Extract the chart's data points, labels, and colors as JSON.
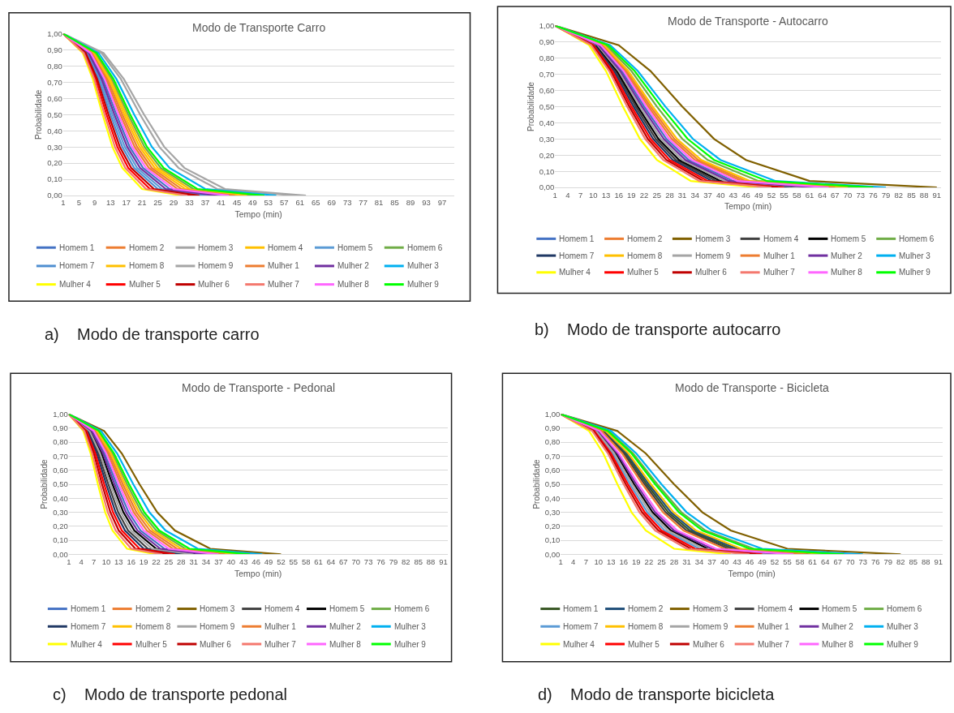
{
  "chart_data": [
    {
      "type": "line",
      "title": "Modo de Transporte Carro",
      "xlabel": "Tempo (min)",
      "ylabel": "Probabilidade",
      "annotations": [
        "a)    Modo de transporte carro"
      ],
      "xlim": [
        1,
        100
      ],
      "xticks": [
        1,
        5,
        9,
        13,
        17,
        21,
        25,
        29,
        33,
        37,
        41,
        45,
        49,
        53,
        57,
        61,
        65,
        69,
        73,
        77,
        81,
        85,
        89,
        93,
        97
      ],
      "ylim": [
        0,
        1
      ],
      "yticks": [
        {
          "value": 0,
          "label": "0,00"
        },
        {
          "value": 0.1,
          "label": "0,10"
        },
        {
          "value": 0.2,
          "label": "0,20"
        },
        {
          "value": 0.3,
          "label": "0,30"
        },
        {
          "value": 0.4,
          "label": "0,40"
        },
        {
          "value": 0.5,
          "label": "0,50"
        },
        {
          "value": 0.6,
          "label": "0,60"
        },
        {
          "value": 0.7,
          "label": "0,70"
        },
        {
          "value": 0.8,
          "label": "0,80"
        },
        {
          "value": 0.9,
          "label": "0,90"
        },
        {
          "value": 1,
          "label": "1,00"
        }
      ],
      "grid": "y",
      "legend": "bottom",
      "series": [
        {
          "name": "Homem 1",
          "color": "#4472c4",
          "x": [
            1,
            7.75,
            11.125,
            14.5,
            17.875,
            21.25,
            28,
            41.5
          ],
          "values": [
            1,
            0.88,
            0.72,
            0.5,
            0.3,
            0.17,
            0.04,
            0
          ]
        },
        {
          "name": "Homem 2",
          "color": "#ed7d31",
          "x": [
            1,
            8.5,
            12.25,
            16,
            19.75,
            23.5,
            31,
            46
          ],
          "values": [
            1,
            0.88,
            0.72,
            0.5,
            0.3,
            0.17,
            0.04,
            0
          ]
        },
        {
          "name": "Homem 3",
          "color": "#a5a5a5",
          "x": [
            1,
            11.25,
            16.375,
            21.5,
            26.625,
            31.75,
            42,
            62.5
          ],
          "values": [
            1,
            0.88,
            0.72,
            0.5,
            0.3,
            0.17,
            0.04,
            0
          ]
        },
        {
          "name": "Homem 4",
          "color": "#ffc000",
          "x": [
            1,
            9,
            13,
            17,
            21,
            25,
            33,
            49
          ],
          "values": [
            1,
            0.88,
            0.72,
            0.5,
            0.3,
            0.17,
            0.04,
            0
          ]
        },
        {
          "name": "Homem 5",
          "color": "#5b9bd5",
          "x": [
            1,
            7.25,
            10.375,
            13.5,
            16.625,
            19.75,
            26,
            38.5
          ],
          "values": [
            1,
            0.88,
            0.72,
            0.5,
            0.3,
            0.17,
            0.04,
            0
          ]
        },
        {
          "name": "Homem 6",
          "color": "#70ad47",
          "x": [
            1,
            9.25,
            13.375,
            17.5,
            21.625,
            25.75,
            34,
            50.5
          ],
          "values": [
            1,
            0.88,
            0.72,
            0.5,
            0.3,
            0.17,
            0.04,
            0
          ]
        },
        {
          "name": "Homem 7",
          "color": "#4f8fd0",
          "x": [
            1,
            7,
            10,
            13,
            16,
            19,
            25,
            37
          ],
          "values": [
            1,
            0.88,
            0.72,
            0.5,
            0.3,
            0.17,
            0.04,
            0
          ]
        },
        {
          "name": "Homem 8",
          "color": "#ffc000",
          "x": [
            1,
            8.75,
            12.625,
            16.5,
            20.375,
            24.25,
            32,
            47.5
          ],
          "values": [
            1,
            0.88,
            0.72,
            0.5,
            0.3,
            0.17,
            0.04,
            0
          ]
        },
        {
          "name": "Homem 9",
          "color": "#a5a5a5",
          "x": [
            1,
            10.75,
            15.625,
            20.5,
            25.375,
            30.25,
            40,
            59.5
          ],
          "values": [
            1,
            0.88,
            0.72,
            0.5,
            0.3,
            0.17,
            0.04,
            0
          ]
        },
        {
          "name": "Mulher 1",
          "color": "#ed7d31",
          "x": [
            1,
            8.25,
            11.875,
            15.5,
            19.125,
            22.75,
            30,
            44.5
          ],
          "values": [
            1,
            0.88,
            0.72,
            0.5,
            0.3,
            0.17,
            0.04,
            0
          ]
        },
        {
          "name": "Mulher 2",
          "color": "#7030a0",
          "x": [
            1,
            7.5,
            10.75,
            14,
            17.25,
            20.5,
            27,
            40
          ],
          "values": [
            1,
            0.88,
            0.72,
            0.5,
            0.3,
            0.17,
            0.04,
            0
          ]
        },
        {
          "name": "Mulher 3",
          "color": "#00b0f0",
          "x": [
            1,
            10,
            14.5,
            19,
            23.5,
            28,
            37,
            55
          ],
          "values": [
            1,
            0.88,
            0.72,
            0.5,
            0.3,
            0.17,
            0.04,
            0
          ]
        },
        {
          "name": "Mulher 4",
          "color": "#ffff00",
          "x": [
            1,
            6,
            8.5,
            11,
            13.5,
            16,
            21,
            31
          ],
          "values": [
            1,
            0.88,
            0.72,
            0.5,
            0.3,
            0.17,
            0.04,
            0
          ]
        },
        {
          "name": "Mulher 5",
          "color": "#ff0000",
          "x": [
            1,
            6.5,
            9.25,
            12,
            14.75,
            17.5,
            23,
            34
          ],
          "values": [
            1,
            0.88,
            0.72,
            0.5,
            0.3,
            0.17,
            0.04,
            0
          ]
        },
        {
          "name": "Mulher 6",
          "color": "#c00000",
          "x": [
            1,
            6.75,
            9.625,
            12.5,
            15.375,
            18.25,
            24,
            35.5
          ],
          "values": [
            1,
            0.88,
            0.72,
            0.5,
            0.3,
            0.17,
            0.04,
            0
          ]
        },
        {
          "name": "Mulher 7",
          "color": "#f4786e",
          "x": [
            1,
            6.25,
            8.875,
            11.5,
            14.125,
            16.75,
            22,
            32.5
          ],
          "values": [
            1,
            0.88,
            0.72,
            0.5,
            0.3,
            0.17,
            0.04,
            0
          ]
        },
        {
          "name": "Mulher 8",
          "color": "#ff66ff",
          "x": [
            1,
            8,
            11.5,
            15,
            18.5,
            22,
            29,
            43
          ],
          "values": [
            1,
            0.88,
            0.72,
            0.5,
            0.3,
            0.17,
            0.04,
            0
          ]
        },
        {
          "name": "Mulher 9",
          "color": "#00ff00",
          "x": [
            1,
            9.5,
            13.75,
            18,
            22.25,
            26.5,
            35,
            52
          ],
          "values": [
            1,
            0.88,
            0.72,
            0.5,
            0.3,
            0.17,
            0.04,
            0
          ]
        }
      ]
    },
    {
      "type": "line",
      "title": "Modo de Transporte - Autocarro",
      "xlabel": "Tempo (min)",
      "ylabel": "Probabilidade",
      "annotations": [
        "b)    Modo de transporte autocarro"
      ],
      "xlim": [
        1,
        92
      ],
      "xticks": [
        1,
        4,
        7,
        10,
        13,
        16,
        19,
        22,
        25,
        28,
        31,
        34,
        37,
        40,
        43,
        46,
        49,
        52,
        55,
        58,
        61,
        64,
        67,
        70,
        73,
        76,
        79,
        82,
        85,
        88,
        91
      ],
      "ylim": [
        0,
        1
      ],
      "yticks": [
        {
          "value": 0,
          "label": "0,00"
        },
        {
          "value": 0.1,
          "label": "0,10"
        },
        {
          "value": 0.2,
          "label": "0,20"
        },
        {
          "value": 0.3,
          "label": "0,30"
        },
        {
          "value": 0.4,
          "label": "0,40"
        },
        {
          "value": 0.5,
          "label": "0,50"
        },
        {
          "value": 0.6,
          "label": "0,60"
        },
        {
          "value": 0.7,
          "label": "0,70"
        },
        {
          "value": 0.8,
          "label": "0,80"
        },
        {
          "value": 0.9,
          "label": "0,90"
        },
        {
          "value": 1,
          "label": "1,00"
        }
      ],
      "grid": "y",
      "legend": "bottom",
      "series": [
        {
          "name": "Homem 1",
          "color": "#4472c4",
          "x": [
            1,
            11.5,
            16.75,
            22,
            27.25,
            32.5,
            43,
            64
          ],
          "values": [
            1,
            0.88,
            0.72,
            0.5,
            0.3,
            0.17,
            0.04,
            0
          ]
        },
        {
          "name": "Homem 2",
          "color": "#ed7d31",
          "x": [
            1,
            12.25,
            17.875,
            23.5,
            29.125,
            34.75,
            46,
            68.5
          ],
          "values": [
            1,
            0.88,
            0.72,
            0.5,
            0.3,
            0.17,
            0.04,
            0
          ]
        },
        {
          "name": "Homem 3",
          "color": "#806000",
          "x": [
            1,
            16,
            23.5,
            31,
            38.5,
            46,
            61,
            91
          ],
          "values": [
            1,
            0.88,
            0.72,
            0.5,
            0.3,
            0.17,
            0.04,
            0
          ]
        },
        {
          "name": "Homem 4",
          "color": "#404040",
          "x": [
            1,
            10.5,
            15.25,
            20,
            24.75,
            29.5,
            39,
            58
          ],
          "values": [
            1,
            0.88,
            0.72,
            0.5,
            0.3,
            0.17,
            0.04,
            0
          ]
        },
        {
          "name": "Homem 5",
          "color": "#000000",
          "x": [
            1,
            10.75,
            15.625,
            20.5,
            25.375,
            30.25,
            40,
            59.5
          ],
          "values": [
            1,
            0.88,
            0.72,
            0.5,
            0.3,
            0.17,
            0.04,
            0
          ]
        },
        {
          "name": "Homem 6",
          "color": "#70ad47",
          "x": [
            1,
            13,
            19,
            25,
            31,
            37,
            49,
            73
          ],
          "values": [
            1,
            0.88,
            0.72,
            0.5,
            0.3,
            0.17,
            0.04,
            0
          ]
        },
        {
          "name": "Homem 7",
          "color": "#203864",
          "x": [
            1,
            10.25,
            14.875,
            19.5,
            24.125,
            28.75,
            38,
            56.5
          ],
          "values": [
            1,
            0.88,
            0.72,
            0.5,
            0.3,
            0.17,
            0.04,
            0
          ]
        },
        {
          "name": "Homem 8",
          "color": "#ffc000",
          "x": [
            1,
            12.5,
            18.25,
            24,
            29.75,
            35.5,
            47,
            70
          ],
          "values": [
            1,
            0.88,
            0.72,
            0.5,
            0.3,
            0.17,
            0.04,
            0
          ]
        },
        {
          "name": "Homem 9",
          "color": "#a5a5a5",
          "x": [
            1,
            11,
            16,
            21,
            26,
            31,
            41,
            61
          ],
          "values": [
            1,
            0.88,
            0.72,
            0.5,
            0.3,
            0.17,
            0.04,
            0
          ]
        },
        {
          "name": "Mulher 1",
          "color": "#ed7d31",
          "x": [
            1,
            12,
            17.5,
            23,
            28.5,
            34,
            45,
            67
          ],
          "values": [
            1,
            0.88,
            0.72,
            0.5,
            0.3,
            0.17,
            0.04,
            0
          ]
        },
        {
          "name": "Mulher 2",
          "color": "#7030a0",
          "x": [
            1,
            11.25,
            16.375,
            21.5,
            26.625,
            31.75,
            42,
            62.5
          ],
          "values": [
            1,
            0.88,
            0.72,
            0.5,
            0.3,
            0.17,
            0.04,
            0
          ]
        },
        {
          "name": "Mulher 3",
          "color": "#00b0f0",
          "x": [
            1,
            14,
            20.5,
            27,
            33.5,
            40,
            53,
            79
          ],
          "values": [
            1,
            0.88,
            0.72,
            0.5,
            0.3,
            0.17,
            0.04,
            0
          ]
        },
        {
          "name": "Mulher 4",
          "color": "#ffff00",
          "x": [
            1,
            9,
            13,
            17,
            21,
            25,
            33,
            49
          ],
          "values": [
            1,
            0.88,
            0.72,
            0.5,
            0.3,
            0.17,
            0.04,
            0
          ]
        },
        {
          "name": "Mulher 5",
          "color": "#ff0000",
          "x": [
            1,
            10,
            14.5,
            19,
            23.5,
            28,
            37,
            55
          ],
          "values": [
            1,
            0.88,
            0.72,
            0.5,
            0.3,
            0.17,
            0.04,
            0
          ]
        },
        {
          "name": "Mulher 6",
          "color": "#c00000",
          "x": [
            1,
            9.75,
            14.125,
            18.5,
            22.875,
            27.25,
            36,
            53.5
          ],
          "values": [
            1,
            0.88,
            0.72,
            0.5,
            0.3,
            0.17,
            0.04,
            0
          ]
        },
        {
          "name": "Mulher 7",
          "color": "#f4786e",
          "x": [
            1,
            9.5,
            13.75,
            18,
            22.25,
            26.5,
            35,
            52
          ],
          "values": [
            1,
            0.88,
            0.72,
            0.5,
            0.3,
            0.17,
            0.04,
            0
          ]
        },
        {
          "name": "Mulher 8",
          "color": "#ff66ff",
          "x": [
            1,
            11.75,
            17.125,
            22.5,
            27.875,
            33.25,
            44,
            65.5
          ],
          "values": [
            1,
            0.88,
            0.72,
            0.5,
            0.3,
            0.17,
            0.04,
            0
          ]
        },
        {
          "name": "Mulher 9",
          "color": "#00ff00",
          "x": [
            1,
            13.5,
            19.75,
            26,
            32.25,
            38.5,
            51,
            76
          ],
          "values": [
            1,
            0.88,
            0.72,
            0.5,
            0.3,
            0.17,
            0.04,
            0
          ]
        }
      ]
    },
    {
      "type": "line",
      "title": "Modo de Transporte - Pedonal",
      "xlabel": "Tempo (min)",
      "ylabel": "Probabilidade",
      "annotations": [
        "c)    Modo de transporte pedonal"
      ],
      "xlim": [
        1,
        92
      ],
      "xticks": [
        1,
        4,
        7,
        10,
        13,
        16,
        19,
        22,
        25,
        28,
        31,
        34,
        37,
        40,
        43,
        46,
        49,
        52,
        55,
        58,
        61,
        64,
        67,
        70,
        73,
        76,
        79,
        82,
        85,
        88,
        91
      ],
      "ylim": [
        0,
        1
      ],
      "yticks": [
        {
          "value": 0,
          "label": "0,00"
        },
        {
          "value": 0.1,
          "label": "0,10"
        },
        {
          "value": 0.2,
          "label": "0,20"
        },
        {
          "value": 0.3,
          "label": "0,30"
        },
        {
          "value": 0.4,
          "label": "0,40"
        },
        {
          "value": 0.5,
          "label": "0,50"
        },
        {
          "value": 0.6,
          "label": "0,60"
        },
        {
          "value": 0.7,
          "label": "0,70"
        },
        {
          "value": 0.8,
          "label": "0,80"
        },
        {
          "value": 0.9,
          "label": "0,90"
        },
        {
          "value": 1,
          "label": "1,00"
        }
      ],
      "grid": "y",
      "legend": "bottom",
      "series": [
        {
          "name": "Homem 1",
          "color": "#4472c4",
          "x": [
            1,
            6.75,
            9.625,
            12.5,
            15.375,
            18.25,
            24,
            35.5
          ],
          "values": [
            1,
            0.88,
            0.72,
            0.5,
            0.3,
            0.17,
            0.04,
            0
          ]
        },
        {
          "name": "Homem 2",
          "color": "#ed7d31",
          "x": [
            1,
            7.5,
            10.75,
            14,
            17.25,
            20.5,
            27,
            40
          ],
          "values": [
            1,
            0.88,
            0.72,
            0.5,
            0.3,
            0.17,
            0.04,
            0
          ]
        },
        {
          "name": "Homem 3",
          "color": "#806000",
          "x": [
            1,
            9.5,
            13.75,
            18,
            22.25,
            26.5,
            35,
            52
          ],
          "values": [
            1,
            0.88,
            0.72,
            0.5,
            0.3,
            0.17,
            0.04,
            0
          ]
        },
        {
          "name": "Homem 4",
          "color": "#404040",
          "x": [
            1,
            5.75,
            8.125,
            10.5,
            12.875,
            15.25,
            20,
            29.5
          ],
          "values": [
            1,
            0.88,
            0.72,
            0.5,
            0.3,
            0.17,
            0.04,
            0
          ]
        },
        {
          "name": "Homem 5",
          "color": "#000000",
          "x": [
            1,
            6.25,
            8.875,
            11.5,
            14.125,
            16.75,
            22,
            32.5
          ],
          "values": [
            1,
            0.88,
            0.72,
            0.5,
            0.3,
            0.17,
            0.04,
            0
          ]
        },
        {
          "name": "Homem 6",
          "color": "#70ad47",
          "x": [
            1,
            8,
            11.5,
            15,
            18.5,
            22,
            29,
            43
          ],
          "values": [
            1,
            0.88,
            0.72,
            0.5,
            0.3,
            0.17,
            0.04,
            0
          ]
        },
        {
          "name": "Homem 7",
          "color": "#203864",
          "x": [
            1,
            5.5,
            7.75,
            10,
            12.25,
            14.5,
            19,
            28
          ],
          "values": [
            1,
            0.88,
            0.72,
            0.5,
            0.3,
            0.17,
            0.04,
            0
          ]
        },
        {
          "name": "Homem 8",
          "color": "#ffc000",
          "x": [
            1,
            7.75,
            11.125,
            14.5,
            17.875,
            21.25,
            28,
            41.5
          ],
          "values": [
            1,
            0.88,
            0.72,
            0.5,
            0.3,
            0.17,
            0.04,
            0
          ]
        },
        {
          "name": "Homem 9",
          "color": "#a5a5a5",
          "x": [
            1,
            6,
            8.5,
            11,
            13.5,
            16,
            21,
            31
          ],
          "values": [
            1,
            0.88,
            0.72,
            0.5,
            0.3,
            0.17,
            0.04,
            0
          ]
        },
        {
          "name": "Mulher 1",
          "color": "#ed7d31",
          "x": [
            1,
            7.25,
            10.375,
            13.5,
            16.625,
            19.75,
            26,
            38.5
          ],
          "values": [
            1,
            0.88,
            0.72,
            0.5,
            0.3,
            0.17,
            0.04,
            0
          ]
        },
        {
          "name": "Mulher 2",
          "color": "#7030a0",
          "x": [
            1,
            6.5,
            9.25,
            12,
            14.75,
            17.5,
            23,
            34
          ],
          "values": [
            1,
            0.88,
            0.72,
            0.5,
            0.3,
            0.17,
            0.04,
            0
          ]
        },
        {
          "name": "Mulher 3",
          "color": "#00b0f0",
          "x": [
            1,
            8.75,
            12.625,
            16.5,
            20.375,
            24.25,
            32,
            47.5
          ],
          "values": [
            1,
            0.88,
            0.72,
            0.5,
            0.3,
            0.17,
            0.04,
            0
          ]
        },
        {
          "name": "Mulher 4",
          "color": "#ffff00",
          "x": [
            1,
            4.5,
            6.25,
            8,
            9.75,
            11.5,
            15,
            22
          ],
          "values": [
            1,
            0.88,
            0.72,
            0.5,
            0.3,
            0.17,
            0.04,
            0
          ]
        },
        {
          "name": "Mulher 5",
          "color": "#ff0000",
          "x": [
            1,
            5.25,
            7.375,
            9.5,
            11.625,
            13.75,
            18,
            26.5
          ],
          "values": [
            1,
            0.88,
            0.72,
            0.5,
            0.3,
            0.17,
            0.04,
            0
          ]
        },
        {
          "name": "Mulher 6",
          "color": "#c00000",
          "x": [
            1,
            5,
            7,
            9,
            11,
            13,
            17,
            25
          ],
          "values": [
            1,
            0.88,
            0.72,
            0.5,
            0.3,
            0.17,
            0.04,
            0
          ]
        },
        {
          "name": "Mulher 7",
          "color": "#f4786e",
          "x": [
            1,
            4.75,
            6.625,
            8.5,
            10.375,
            12.25,
            16,
            23.5
          ],
          "values": [
            1,
            0.88,
            0.72,
            0.5,
            0.3,
            0.17,
            0.04,
            0
          ]
        },
        {
          "name": "Mulher 8",
          "color": "#ff66ff",
          "x": [
            1,
            7,
            10,
            13,
            16,
            19,
            25,
            37
          ],
          "values": [
            1,
            0.88,
            0.72,
            0.5,
            0.3,
            0.17,
            0.04,
            0
          ]
        },
        {
          "name": "Mulher 9",
          "color": "#00ff00",
          "x": [
            1,
            8.25,
            11.875,
            15.5,
            19.125,
            22.75,
            30,
            44.5
          ],
          "values": [
            1,
            0.88,
            0.72,
            0.5,
            0.3,
            0.17,
            0.04,
            0
          ]
        }
      ]
    },
    {
      "type": "line",
      "title": "Modo de Transporte - Bicicleta",
      "xlabel": "Tempo (min)",
      "ylabel": "Probabilidade",
      "annotations": [
        "d)    Modo de transporte bicicleta"
      ],
      "xlim": [
        1,
        92
      ],
      "xticks": [
        1,
        4,
        7,
        10,
        13,
        16,
        19,
        22,
        25,
        28,
        31,
        34,
        37,
        40,
        43,
        46,
        49,
        52,
        55,
        58,
        61,
        64,
        67,
        70,
        73,
        76,
        79,
        82,
        85,
        88,
        91
      ],
      "ylim": [
        0,
        1
      ],
      "yticks": [
        {
          "value": 0,
          "label": "0,00"
        },
        {
          "value": 0.1,
          "label": "0,10"
        },
        {
          "value": 0.2,
          "label": "0,20"
        },
        {
          "value": 0.3,
          "label": "0,30"
        },
        {
          "value": 0.4,
          "label": "0,40"
        },
        {
          "value": 0.5,
          "label": "0,50"
        },
        {
          "value": 0.6,
          "label": "0,60"
        },
        {
          "value": 0.7,
          "label": "0,70"
        },
        {
          "value": 0.8,
          "label": "0,80"
        },
        {
          "value": 0.9,
          "label": "0,90"
        },
        {
          "value": 1,
          "label": "1,00"
        }
      ],
      "grid": "y",
      "legend": "bottom",
      "series": [
        {
          "name": "Homem 1",
          "color": "#375623",
          "x": [
            1,
            11.25,
            16.375,
            21.5,
            26.625,
            31.75,
            42,
            62.5
          ],
          "values": [
            1,
            0.88,
            0.72,
            0.5,
            0.3,
            0.17,
            0.04,
            0
          ]
        },
        {
          "name": "Homem 2",
          "color": "#1f4e79",
          "x": [
            1,
            11.5,
            16.75,
            22,
            27.25,
            32.5,
            43,
            64
          ],
          "values": [
            1,
            0.88,
            0.72,
            0.5,
            0.3,
            0.17,
            0.04,
            0
          ]
        },
        {
          "name": "Homem 3",
          "color": "#806000",
          "x": [
            1,
            14.5,
            21.25,
            28,
            34.75,
            41.5,
            55,
            82
          ],
          "values": [
            1,
            0.88,
            0.72,
            0.5,
            0.3,
            0.17,
            0.04,
            0
          ]
        },
        {
          "name": "Homem 4",
          "color": "#404040",
          "x": [
            1,
            11,
            16,
            21,
            26,
            31,
            41,
            61
          ],
          "values": [
            1,
            0.88,
            0.72,
            0.5,
            0.3,
            0.17,
            0.04,
            0
          ]
        },
        {
          "name": "Homem 5",
          "color": "#000000",
          "x": [
            1,
            9.75,
            14.125,
            18.5,
            22.875,
            27.25,
            36,
            53.5
          ],
          "values": [
            1,
            0.88,
            0.72,
            0.5,
            0.3,
            0.17,
            0.04,
            0
          ]
        },
        {
          "name": "Homem 6",
          "color": "#70ad47",
          "x": [
            1,
            12.5,
            18.25,
            24,
            29.75,
            35.5,
            47,
            70
          ],
          "values": [
            1,
            0.88,
            0.72,
            0.5,
            0.3,
            0.17,
            0.04,
            0
          ]
        },
        {
          "name": "Homem 7",
          "color": "#5b9bd5",
          "x": [
            1,
            9.25,
            13.375,
            17.5,
            21.625,
            25.75,
            34,
            50.5
          ],
          "values": [
            1,
            0.88,
            0.72,
            0.5,
            0.3,
            0.17,
            0.04,
            0
          ]
        },
        {
          "name": "Homem 8",
          "color": "#ffc000",
          "x": [
            1,
            11.75,
            17.125,
            22.5,
            27.875,
            33.25,
            44,
            65.5
          ],
          "values": [
            1,
            0.88,
            0.72,
            0.5,
            0.3,
            0.17,
            0.04,
            0
          ]
        },
        {
          "name": "Homem 9",
          "color": "#a5a5a5",
          "x": [
            1,
            9.5,
            13.75,
            18,
            22.25,
            26.5,
            35,
            52
          ],
          "values": [
            1,
            0.88,
            0.72,
            0.5,
            0.3,
            0.17,
            0.04,
            0
          ]
        },
        {
          "name": "Mulher 1",
          "color": "#ed7d31",
          "x": [
            1,
            10.75,
            15.625,
            20.5,
            25.375,
            30.25,
            40,
            59.5
          ],
          "values": [
            1,
            0.88,
            0.72,
            0.5,
            0.3,
            0.17,
            0.04,
            0
          ]
        },
        {
          "name": "Mulher 2",
          "color": "#7030a0",
          "x": [
            1,
            10,
            14.5,
            19,
            23.5,
            28,
            37,
            55
          ],
          "values": [
            1,
            0.88,
            0.72,
            0.5,
            0.3,
            0.17,
            0.04,
            0
          ]
        },
        {
          "name": "Mulher 3",
          "color": "#00b0f0",
          "x": [
            1,
            13,
            19,
            25,
            31,
            37,
            49,
            73
          ],
          "values": [
            1,
            0.88,
            0.72,
            0.5,
            0.3,
            0.17,
            0.04,
            0
          ]
        },
        {
          "name": "Mulher 4",
          "color": "#ffff00",
          "x": [
            1,
            7.75,
            11.125,
            14.5,
            17.875,
            21.25,
            28,
            41.5
          ],
          "values": [
            1,
            0.88,
            0.72,
            0.5,
            0.3,
            0.17,
            0.04,
            0
          ]
        },
        {
          "name": "Mulher 5",
          "color": "#ff0000",
          "x": [
            1,
            9,
            13,
            17,
            21,
            25,
            33,
            49
          ],
          "values": [
            1,
            0.88,
            0.72,
            0.5,
            0.3,
            0.17,
            0.04,
            0
          ]
        },
        {
          "name": "Mulher 6",
          "color": "#c00000",
          "x": [
            1,
            8.75,
            12.625,
            16.5,
            20.375,
            24.25,
            32,
            47.5
          ],
          "values": [
            1,
            0.88,
            0.72,
            0.5,
            0.3,
            0.17,
            0.04,
            0
          ]
        },
        {
          "name": "Mulher 7",
          "color": "#f4786e",
          "x": [
            1,
            8.5,
            12.25,
            16,
            19.75,
            23.5,
            31,
            46
          ],
          "values": [
            1,
            0.88,
            0.72,
            0.5,
            0.3,
            0.17,
            0.04,
            0
          ]
        },
        {
          "name": "Mulher 8",
          "color": "#ff66ff",
          "x": [
            1,
            10.25,
            14.875,
            19.5,
            24.125,
            28.75,
            38,
            56.5
          ],
          "values": [
            1,
            0.88,
            0.72,
            0.5,
            0.3,
            0.17,
            0.04,
            0
          ]
        },
        {
          "name": "Mulher 9",
          "color": "#00ff00",
          "x": [
            1,
            12.25,
            17.875,
            23.5,
            29.125,
            34.75,
            46,
            68.5
          ],
          "values": [
            1,
            0.88,
            0.72,
            0.5,
            0.3,
            0.17,
            0.04,
            0
          ]
        }
      ]
    }
  ]
}
